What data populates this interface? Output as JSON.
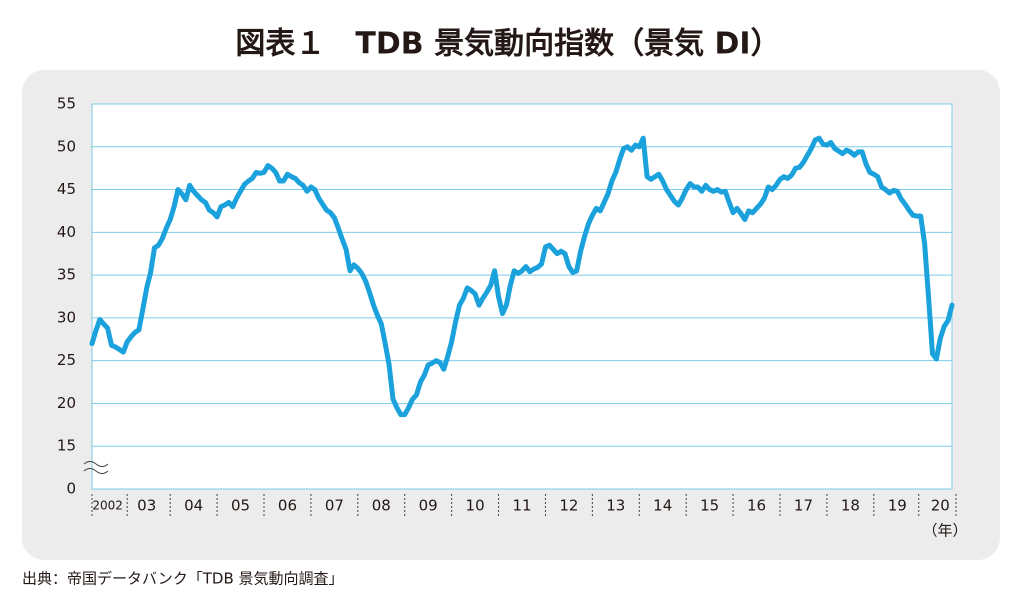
{
  "chart_data": {
    "type": "line",
    "title": "図表１　TDB 景気動向指数（景気 DI）",
    "source": "出典：帝国データバンク「TDB 景気動向調査」",
    "x_unit": "（年）",
    "categories": [
      null,
      null,
      null,
      null,
      "2002",
      null,
      null,
      null,
      null,
      null,
      null,
      null,
      null,
      null,
      "03",
      null,
      null,
      null,
      null,
      null,
      null,
      null,
      null,
      null,
      null,
      null,
      "04",
      null,
      null,
      null,
      null,
      null,
      null,
      null,
      null,
      null,
      null,
      null,
      "05",
      null,
      null,
      null,
      null,
      null,
      null,
      null,
      null,
      null,
      null,
      null,
      "06",
      null,
      null,
      null,
      null,
      null,
      null,
      null,
      null,
      null,
      null,
      null,
      "07",
      null,
      null,
      null,
      null,
      null,
      null,
      null,
      null,
      null,
      null,
      null,
      "08",
      null,
      null,
      null,
      null,
      null,
      null,
      null,
      null,
      null,
      null,
      null,
      "09",
      null,
      null,
      null,
      null,
      null,
      null,
      null,
      null,
      null,
      null,
      null,
      "10",
      null,
      null,
      null,
      null,
      null,
      null,
      null,
      null,
      null,
      null,
      null,
      "11",
      null,
      null,
      null,
      null,
      null,
      null,
      null,
      null,
      null,
      null,
      null,
      "12",
      null,
      null,
      null,
      null,
      null,
      null,
      null,
      null,
      null,
      null,
      null,
      "13",
      null,
      null,
      null,
      null,
      null,
      null,
      null,
      null,
      null,
      null,
      null,
      "14",
      null,
      null,
      null,
      null,
      null,
      null,
      null,
      null,
      null,
      null,
      null,
      "15",
      null,
      null,
      null,
      null,
      null,
      null,
      null,
      null,
      null,
      null,
      null,
      "16",
      null,
      null,
      null,
      null,
      null,
      null,
      null,
      null,
      null,
      null,
      null,
      "17",
      null,
      null,
      null,
      null,
      null,
      null,
      null,
      null,
      null,
      null,
      null,
      "18",
      null,
      null,
      null,
      null,
      null,
      null,
      null,
      null,
      null,
      null,
      null,
      "19",
      null,
      null,
      null,
      null,
      null,
      null,
      null,
      null,
      null,
      null,
      "20",
      null,
      null,
      null
    ],
    "series": [
      {
        "name": "景気 DI",
        "color": "#1ba1dc",
        "values": [
          27.0,
          28.5,
          29.8,
          29.3,
          28.8,
          26.8,
          26.6,
          26.3,
          26.0,
          27.2,
          27.8,
          28.3,
          28.6,
          31.0,
          33.5,
          35.3,
          38.2,
          38.5,
          39.3,
          40.5,
          41.5,
          43.0,
          45.0,
          44.5,
          43.8,
          45.5,
          44.8,
          44.3,
          43.8,
          43.5,
          42.6,
          42.3,
          41.8,
          43.0,
          43.2,
          43.5,
          43.0,
          44.0,
          44.8,
          45.6,
          46.0,
          46.3,
          47.0,
          46.9,
          47.0,
          47.8,
          47.5,
          47.0,
          46.0,
          46.0,
          46.8,
          46.5,
          46.3,
          45.8,
          45.5,
          44.8,
          45.3,
          45.0,
          44.0,
          43.3,
          42.6,
          42.3,
          41.7,
          40.5,
          39.2,
          38.0,
          35.5,
          36.2,
          35.8,
          35.2,
          34.3,
          33.0,
          31.5,
          30.3,
          29.3,
          27.0,
          24.5,
          20.5,
          19.5,
          18.7,
          18.7,
          19.5,
          20.5,
          21.0,
          22.5,
          23.3,
          24.5,
          24.7,
          25.0,
          24.8,
          24.0,
          25.5,
          27.2,
          29.5,
          31.5,
          32.3,
          33.5,
          33.2,
          32.8,
          31.5,
          32.3,
          33.0,
          33.8,
          35.5,
          32.5,
          30.5,
          31.5,
          33.8,
          35.5,
          35.2,
          35.5,
          36.0,
          35.4,
          35.7,
          35.9,
          36.3,
          38.3,
          38.5,
          38.0,
          37.5,
          37.8,
          37.5,
          36.0,
          35.3,
          35.5,
          37.8,
          39.5,
          41.0,
          42.0,
          42.8,
          42.5,
          43.5,
          44.5,
          46.0,
          47.0,
          48.5,
          49.8,
          50.0,
          49.6,
          50.2,
          50.0,
          51.0,
          46.5,
          46.2,
          46.5,
          46.8,
          46.0,
          45.0,
          44.3,
          43.6,
          43.2,
          44.0,
          45.0,
          45.7,
          45.3,
          45.3,
          44.8,
          45.5,
          45.0,
          44.8,
          45.0,
          44.7,
          44.8,
          43.5,
          42.3,
          42.8,
          42.2,
          41.5,
          42.5,
          42.3,
          42.8,
          43.3,
          44.0,
          45.3,
          45.0,
          45.5,
          46.2,
          46.5,
          46.3,
          46.7,
          47.5,
          47.6,
          48.2,
          49.0,
          49.8,
          50.8,
          51.0,
          50.3,
          50.2,
          50.5,
          49.8,
          49.5,
          49.2,
          49.6,
          49.4,
          49.0,
          49.4,
          49.4,
          48.0,
          47.0,
          46.8,
          46.5,
          45.3,
          45.0,
          44.6,
          44.9,
          44.8,
          43.9,
          43.3,
          42.6,
          42.0,
          41.9,
          41.9,
          38.7,
          32.5,
          25.8,
          25.2,
          27.6,
          29.0,
          29.7,
          31.5
        ]
      }
    ],
    "ylim": [
      10,
      55
    ],
    "yticks": [
      0,
      15,
      20,
      25,
      30,
      35,
      40,
      45,
      50,
      55
    ],
    "axis_break": true,
    "grid": true
  }
}
